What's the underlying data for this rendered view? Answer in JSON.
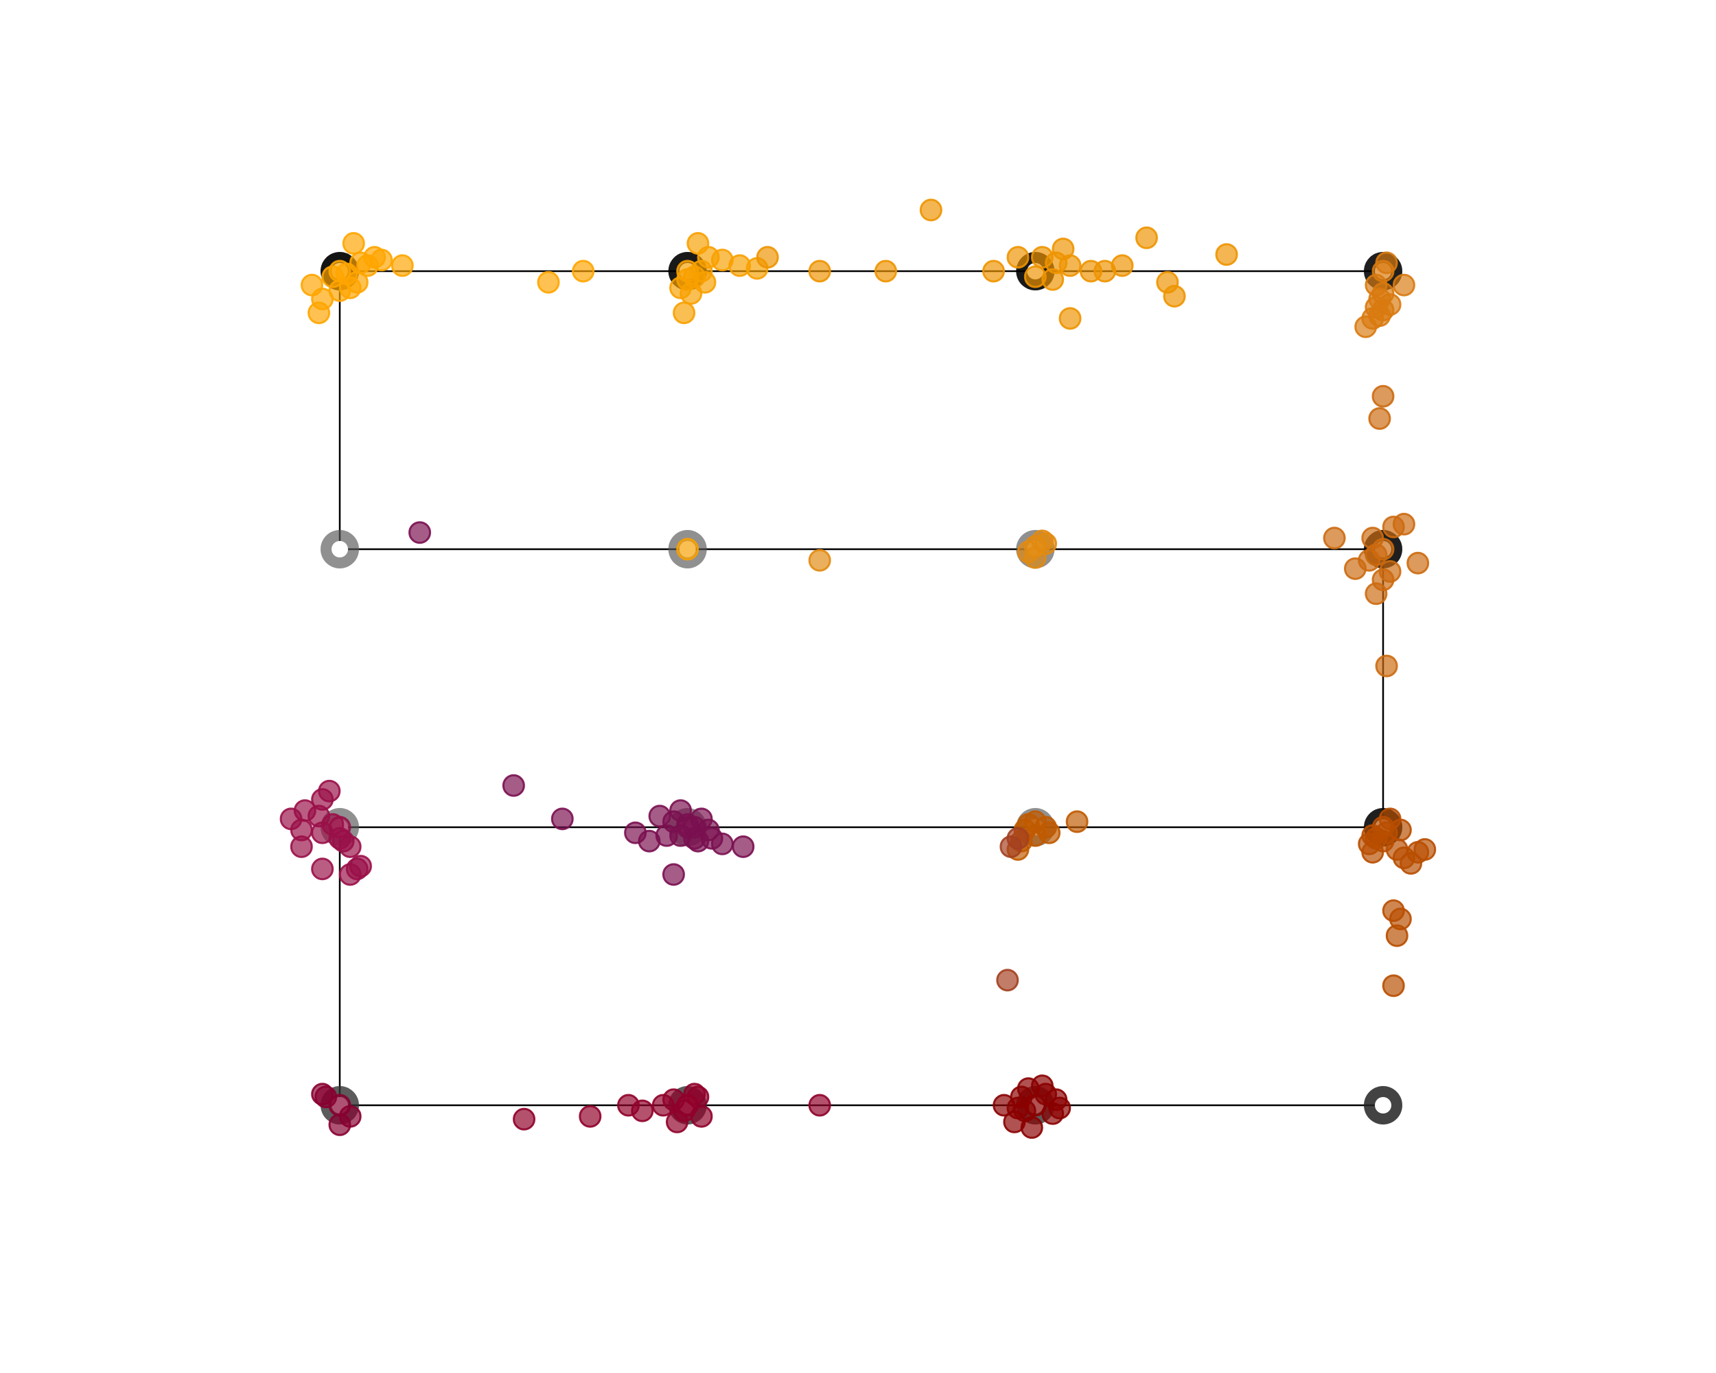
{
  "chart_data": {
    "type": "scatter",
    "grid": false,
    "axes_visible": false,
    "xlim": [
      -0.2,
      3.2
    ],
    "ylim": [
      -0.2,
      3.3
    ],
    "path_color": "#000000",
    "path": [
      [
        3,
        3
      ],
      [
        2,
        3
      ],
      [
        1,
        3
      ],
      [
        0,
        3
      ],
      [
        0,
        2
      ],
      [
        1,
        2
      ],
      [
        2,
        2
      ],
      [
        3,
        2
      ],
      [
        3,
        1
      ],
      [
        2,
        1
      ],
      [
        1,
        1
      ],
      [
        0,
        1
      ],
      [
        0,
        0
      ],
      [
        1,
        0
      ],
      [
        2,
        0
      ],
      [
        3,
        0
      ]
    ],
    "nodes": [
      {
        "x": 0,
        "y": 3,
        "fill": "#000000",
        "opacity": 0.92
      },
      {
        "x": 1,
        "y": 3,
        "fill": "#000000",
        "opacity": 0.9
      },
      {
        "x": 2,
        "y": 3,
        "fill": "#000000",
        "opacity": 0.9
      },
      {
        "x": 3,
        "y": 3,
        "fill": "#000000",
        "opacity": 0.88
      },
      {
        "x": 0,
        "y": 2,
        "fill": "#555555",
        "opacity": 0.65
      },
      {
        "x": 1,
        "y": 2,
        "fill": "#555555",
        "opacity": 0.65
      },
      {
        "x": 2,
        "y": 2,
        "fill": "#555555",
        "opacity": 0.65
      },
      {
        "x": 3,
        "y": 2,
        "fill": "#000000",
        "opacity": 0.88
      },
      {
        "x": 0,
        "y": 1,
        "fill": "#555555",
        "opacity": 0.65
      },
      {
        "x": 1,
        "y": 1,
        "fill": "#555555",
        "opacity": 0.65
      },
      {
        "x": 2,
        "y": 1,
        "fill": "#555555",
        "opacity": 0.65
      },
      {
        "x": 3,
        "y": 1,
        "fill": "#000000",
        "opacity": 0.88
      },
      {
        "x": 0,
        "y": 0,
        "fill": "#333333",
        "opacity": 0.8
      },
      {
        "x": 1,
        "y": 0,
        "fill": "#333333",
        "opacity": 0.8
      },
      {
        "x": 2,
        "y": 0,
        "fill": "#333333",
        "opacity": 0.8
      },
      {
        "x": 3,
        "y": 0,
        "fill": "#222222",
        "opacity": 0.85
      }
    ],
    "series": [
      {
        "color": "#ffa500",
        "points": [
          [
            0.0,
            3.0
          ],
          [
            0.04,
            3.1
          ],
          [
            -0.08,
            2.95
          ],
          [
            0.06,
            3.03
          ],
          [
            -0.05,
            2.9
          ],
          [
            0.12,
            3.04
          ],
          [
            0.18,
            3.02
          ],
          [
            0.1,
            3.05
          ],
          [
            -0.02,
            2.98
          ],
          [
            0.03,
            2.94
          ],
          [
            0.05,
            2.96
          ],
          [
            -0.06,
            2.85
          ],
          [
            0.08,
            3.02
          ],
          [
            0.02,
            2.99
          ],
          [
            0.0,
            2.93
          ],
          [
            0.6,
            2.96
          ],
          [
            0.7,
            3.0
          ]
        ]
      },
      {
        "color": "#f8a000",
        "points": [
          [
            1.0,
            3.0
          ],
          [
            1.03,
            3.1
          ],
          [
            1.06,
            3.05
          ],
          [
            0.98,
            2.94
          ],
          [
            1.01,
            2.92
          ],
          [
            1.04,
            3.0
          ],
          [
            1.1,
            3.04
          ],
          [
            1.15,
            3.02
          ],
          [
            1.2,
            3.01
          ],
          [
            1.05,
            2.96
          ],
          [
            1.0,
            2.97
          ],
          [
            0.99,
            2.85
          ],
          [
            1.02,
            2.98
          ],
          [
            1.0,
            2.0
          ]
        ]
      },
      {
        "color": "#ee9300",
        "points": [
          [
            1.23,
            3.05
          ],
          [
            1.38,
            3.0
          ],
          [
            1.57,
            3.0
          ],
          [
            1.7,
            3.22
          ],
          [
            1.88,
            3.0
          ],
          [
            1.95,
            3.05
          ],
          [
            2.0,
            2.98
          ],
          [
            2.06,
            3.03
          ],
          [
            2.08,
            3.08
          ],
          [
            2.1,
            3.02
          ],
          [
            2.16,
            3.0
          ],
          [
            2.2,
            3.0
          ],
          [
            2.25,
            3.02
          ],
          [
            2.32,
            3.12
          ],
          [
            2.38,
            2.96
          ],
          [
            2.4,
            2.91
          ],
          [
            2.55,
            3.06
          ],
          [
            2.1,
            2.83
          ],
          [
            2.05,
            2.97
          ],
          [
            2.02,
            3.05
          ]
        ]
      },
      {
        "color": "#e28a10",
        "points": [
          [
            1.38,
            1.96
          ],
          [
            2.02,
            2.03
          ],
          [
            2.0,
            2.01
          ],
          [
            1.98,
            1.99
          ],
          [
            2.03,
            2.02
          ],
          [
            2.0,
            1.97
          ]
        ]
      },
      {
        "color": "#d87a10",
        "points": [
          [
            3.0,
            3.0
          ],
          [
            3.01,
            3.03
          ],
          [
            2.98,
            2.95
          ],
          [
            3.0,
            2.92
          ],
          [
            2.99,
            2.9
          ],
          [
            2.98,
            2.87
          ],
          [
            3.06,
            2.95
          ],
          [
            2.95,
            2.8
          ],
          [
            2.97,
            2.83
          ],
          [
            3.02,
            2.88
          ],
          [
            3.0,
            2.86
          ],
          [
            2.99,
            2.84
          ]
        ]
      },
      {
        "color": "#cc6a10",
        "points": [
          [
            3.0,
            2.55
          ],
          [
            2.99,
            2.47
          ],
          [
            3.0,
            2.0
          ],
          [
            2.97,
            2.04
          ],
          [
            3.03,
            2.08
          ],
          [
            3.06,
            2.09
          ],
          [
            2.86,
            2.04
          ],
          [
            3.1,
            1.95
          ],
          [
            2.92,
            1.93
          ],
          [
            2.96,
            1.96
          ],
          [
            2.98,
            1.98
          ],
          [
            3.02,
            1.92
          ],
          [
            3.0,
            1.89
          ],
          [
            2.98,
            1.84
          ],
          [
            3.01,
            1.58
          ]
        ]
      },
      {
        "color": "#b84e00",
        "points": [
          [
            3.0,
            1.0
          ],
          [
            2.97,
            0.97
          ],
          [
            3.05,
            0.99
          ],
          [
            3.02,
            1.03
          ],
          [
            3.0,
            0.95
          ],
          [
            2.96,
            0.94
          ],
          [
            2.98,
            0.96
          ],
          [
            3.04,
            0.92
          ],
          [
            3.06,
            0.89
          ],
          [
            3.08,
            0.87
          ],
          [
            3.1,
            0.91
          ],
          [
            3.12,
            0.92
          ],
          [
            2.97,
            0.91
          ],
          [
            3.01,
            0.98
          ],
          [
            3.03,
            0.7
          ],
          [
            3.05,
            0.67
          ],
          [
            3.04,
            0.61
          ],
          [
            3.03,
            0.43
          ]
        ]
      },
      {
        "color": "#c05a00",
        "points": [
          [
            2.0,
            1.02
          ],
          [
            1.97,
            0.99
          ],
          [
            2.03,
            1.0
          ],
          [
            2.04,
            0.98
          ],
          [
            1.98,
            1.01
          ],
          [
            2.12,
            1.02
          ],
          [
            1.96,
            0.95
          ],
          [
            1.95,
            0.92
          ],
          [
            2.0,
            0.97
          ]
        ]
      },
      {
        "color": "#a34020",
        "points": [
          [
            1.92,
            0.45
          ],
          [
            1.95,
            0.96
          ],
          [
            1.93,
            0.93
          ]
        ]
      },
      {
        "color": "#9a1048",
        "points": [
          [
            0.0,
            1.0
          ],
          [
            -0.05,
            1.1
          ],
          [
            -0.1,
            1.06
          ],
          [
            -0.03,
            1.13
          ],
          [
            -0.06,
            1.04
          ],
          [
            -0.14,
            1.03
          ],
          [
            -0.11,
            0.99
          ],
          [
            -0.05,
            0.98
          ],
          [
            -0.02,
            1.01
          ],
          [
            0.01,
            0.95
          ],
          [
            0.03,
            0.93
          ],
          [
            -0.11,
            0.93
          ],
          [
            0.06,
            0.86
          ],
          [
            -0.05,
            0.85
          ],
          [
            0.03,
            0.83
          ],
          [
            0.05,
            0.85
          ],
          [
            0.0,
            0.96
          ]
        ]
      },
      {
        "color": "#7a1050",
        "points": [
          [
            1.0,
            1.0
          ],
          [
            0.92,
            1.04
          ],
          [
            0.98,
            1.06
          ],
          [
            0.96,
            1.02
          ],
          [
            1.0,
            1.01
          ],
          [
            1.02,
            1.0
          ],
          [
            1.04,
            1.03
          ],
          [
            1.06,
            0.99
          ],
          [
            0.94,
            0.97
          ],
          [
            1.02,
            0.96
          ],
          [
            1.1,
            0.94
          ],
          [
            1.16,
            0.93
          ],
          [
            0.85,
            0.98
          ],
          [
            0.89,
            0.95
          ],
          [
            0.96,
            0.83
          ],
          [
            1.03,
            0.95
          ],
          [
            1.07,
            0.96
          ],
          [
            0.98,
            0.97
          ],
          [
            0.5,
            1.15
          ],
          [
            0.64,
            1.03
          ],
          [
            0.23,
            2.06
          ]
        ]
      },
      {
        "color": "#880030",
        "points": [
          [
            0.0,
            0.0
          ],
          [
            -0.05,
            0.04
          ],
          [
            0.03,
            -0.04
          ],
          [
            0.0,
            -0.07
          ],
          [
            -0.04,
            0.03
          ]
        ]
      },
      {
        "color": "#90002a",
        "points": [
          [
            1.0,
            0.0
          ],
          [
            0.93,
            0.0
          ],
          [
            0.97,
            -0.06
          ],
          [
            1.03,
            0.03
          ],
          [
            1.04,
            -0.04
          ],
          [
            0.96,
            0.02
          ],
          [
            0.99,
            -0.02
          ],
          [
            1.02,
            0.04
          ],
          [
            0.87,
            -0.02
          ],
          [
            0.83,
            0.0
          ],
          [
            0.72,
            -0.04
          ],
          [
            0.53,
            -0.05
          ],
          [
            1.38,
            0.0
          ]
        ]
      },
      {
        "color": "#8a0000",
        "points": [
          [
            2.0,
            0.0
          ],
          [
            1.96,
            0.03
          ],
          [
            2.03,
            0.04
          ],
          [
            1.97,
            -0.02
          ],
          [
            2.05,
            -0.03
          ],
          [
            1.94,
            -0.06
          ],
          [
            1.99,
            -0.08
          ],
          [
            2.06,
            0.02
          ],
          [
            1.91,
            0.0
          ],
          [
            2.02,
            0.07
          ],
          [
            1.98,
            0.06
          ],
          [
            2.07,
            -0.01
          ],
          [
            1.95,
            -0.01
          ]
        ]
      }
    ]
  }
}
